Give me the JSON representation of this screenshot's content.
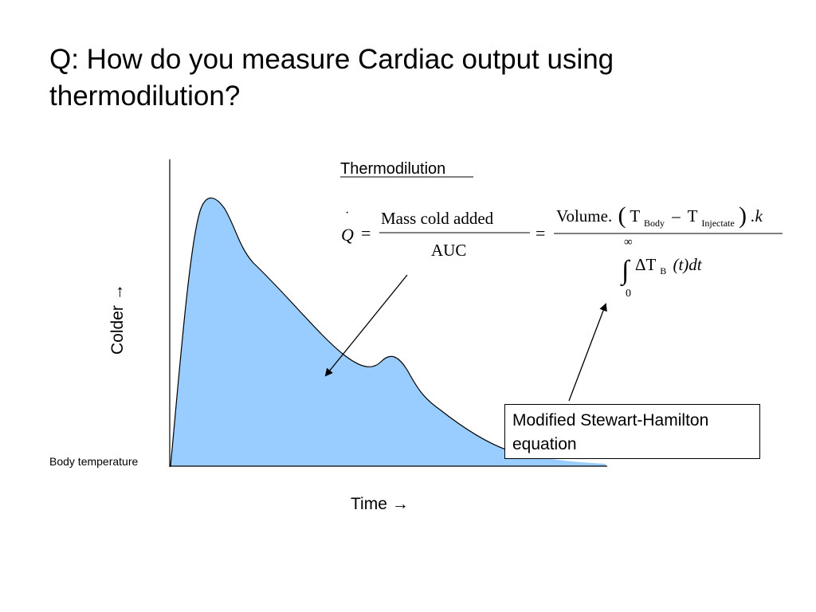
{
  "slide": {
    "title_line1": "Q: How do you measure Cardiac output using",
    "title_line2": "thermodilution?"
  },
  "diagram": {
    "heading": "Thermodilution",
    "y_axis_label": "Colder",
    "y_axis_arrow": "→",
    "x_axis_label": "Time",
    "x_axis_arrow": "→",
    "baseline_label": "Body temperature",
    "curve_fill_color": "#99ccff",
    "callout_line1": "Modified Stewart-Hamilton",
    "callout_line2": "equation"
  },
  "equation": {
    "lhs_symbol": "Q",
    "lhs_dot": "·",
    "equals": "=",
    "numerator1": "Mass cold added",
    "denominator1": "AUC",
    "numerator2_prefix": "Volume.",
    "open_paren": "(",
    "t_symbol": "T",
    "sub_body": "Body",
    "minus": "–",
    "sub_injectate": "Injectate",
    "close_paren": ")",
    "k_suffix": ".k",
    "integral_upper": "∞",
    "integral_sign": "∫",
    "integral_lower": "0",
    "delta_t": "ΔT",
    "sub_b": "B",
    "integrand_rest": "(t)dt"
  }
}
